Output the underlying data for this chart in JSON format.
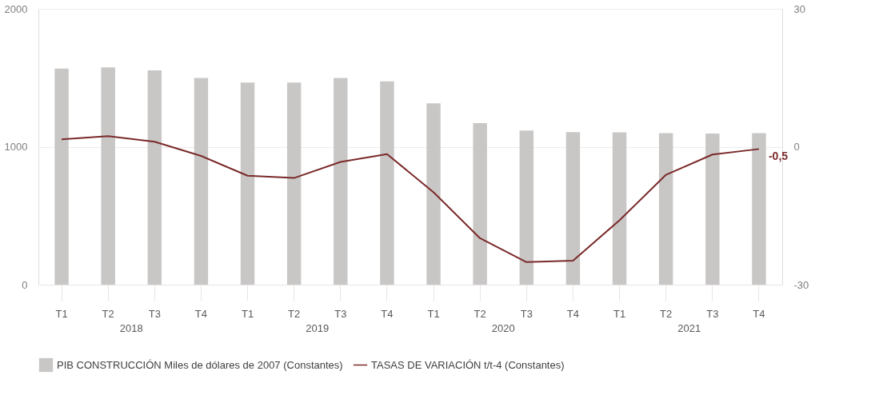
{
  "chart_data": {
    "type": "bar",
    "categories": [
      "T1",
      "T2",
      "T3",
      "T4",
      "T1",
      "T2",
      "T3",
      "T4",
      "T1",
      "T2",
      "T3",
      "T4",
      "T1",
      "T2",
      "T3",
      "T4"
    ],
    "series": [
      {
        "name": "PIB CONSTRUCCIÓN  Miles de dólares de 2007 (Constantes)",
        "color": "#c9c7c6",
        "values": [
          1566,
          1575,
          1553,
          1499,
          1465,
          1465,
          1499,
          1474,
          1315,
          1171,
          1117,
          1106,
          1104,
          1098,
          1096,
          1098
        ]
      },
      {
        "name": "TASAS DE VARIACIÓN t/t-4 (Constantes)",
        "type": "line",
        "axis": "y2",
        "color": "#7b2a2a",
        "values": [
          1.6,
          2.3,
          1.1,
          -2.0,
          -6.3,
          -6.8,
          -3.3,
          -1.6,
          -9.9,
          -19.9,
          -25.1,
          -24.8,
          -16.0,
          -6.1,
          -1.7,
          -0.5
        ],
        "value_labels": [
          null,
          null,
          null,
          null,
          null,
          null,
          null,
          null,
          null,
          null,
          null,
          null,
          null,
          null,
          null,
          "-0,5"
        ]
      }
    ],
    "ylim": [
      0,
      2000
    ],
    "yticks": [
      0,
      1000,
      2000
    ],
    "y2lim": [
      -30,
      30
    ],
    "y2ticks": [
      -30,
      0,
      30
    ],
    "grid": "y",
    "legend": "bottom",
    "line_style": "solid",
    "annotations": [
      "2018",
      "2019",
      "2020",
      "2021"
    ]
  }
}
